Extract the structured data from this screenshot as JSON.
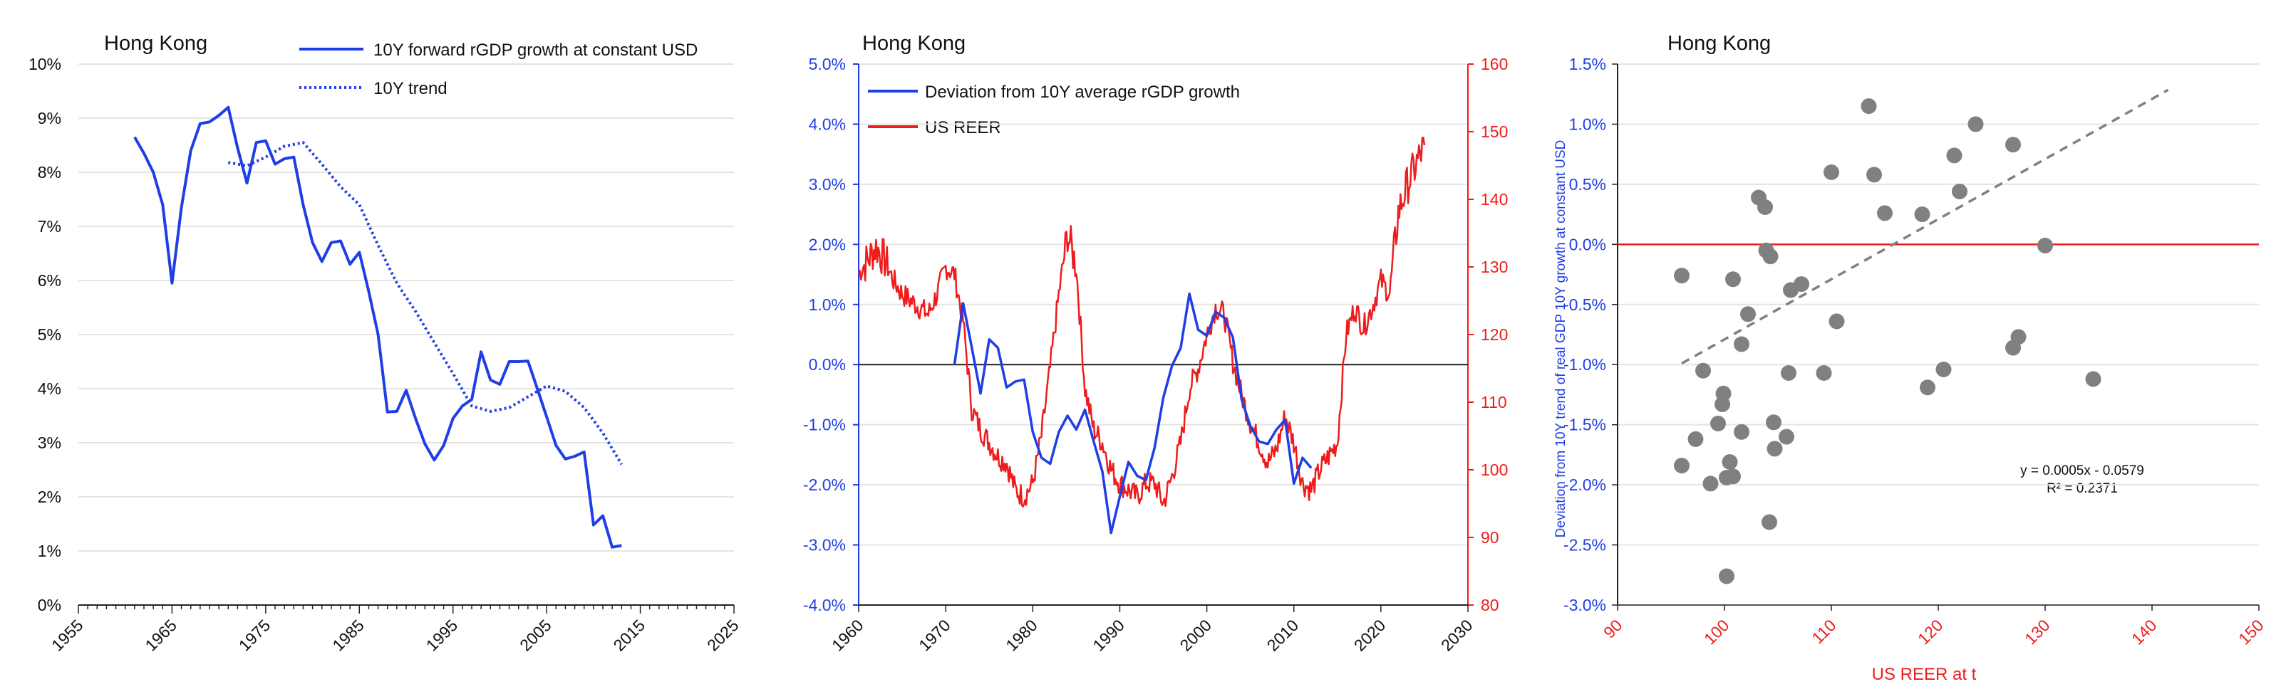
{
  "colors": {
    "blue": "#1f3ee6",
    "red": "#ee1c1c",
    "grid": "#e4e4e4",
    "axis": "#222222",
    "dot": "#808080",
    "trend": "#808080"
  },
  "chart_data": [
    {
      "type": "line",
      "title": "Hong Kong",
      "xlim": [
        1955,
        2025
      ],
      "ylim": [
        0,
        0.1
      ],
      "x_ticks": [
        "1955",
        "1965",
        "1975",
        "1985",
        "1995",
        "2005",
        "2015",
        "2025"
      ],
      "y_ticks": [
        "0%",
        "1%",
        "2%",
        "3%",
        "4%",
        "5%",
        "6%",
        "7%",
        "8%",
        "9%",
        "10%"
      ],
      "grid": "horizontal",
      "legend_position": "top-right",
      "series": [
        {
          "name": "10Y forward rGDP growth at constant USD",
          "style": "solid",
          "x": [
            1961,
            1962,
            1963,
            1964,
            1965,
            1966,
            1967,
            1968,
            1969,
            1970,
            1971,
            1972,
            1973,
            1974,
            1975,
            1976,
            1977,
            1978,
            1979,
            1980,
            1981,
            1982,
            1983,
            1984,
            1985,
            1986,
            1987,
            1988,
            1989,
            1990,
            1991,
            1992,
            1993,
            1994,
            1995,
            1996,
            1997,
            1998,
            1999,
            2000,
            2001,
            2002,
            2003,
            2004,
            2005,
            2006,
            2007,
            2008,
            2009,
            2010,
            2011,
            2012,
            2013
          ],
          "y": [
            0.0865,
            0.0835,
            0.08,
            0.074,
            0.0595,
            0.0735,
            0.084,
            0.089,
            0.0893,
            0.0905,
            0.092,
            0.0845,
            0.078,
            0.0855,
            0.0858,
            0.0815,
            0.0825,
            0.0828,
            0.074,
            0.067,
            0.0635,
            0.067,
            0.0673,
            0.063,
            0.0652,
            0.058,
            0.05,
            0.0357,
            0.0358,
            0.0397,
            0.0345,
            0.0298,
            0.0268,
            0.0295,
            0.0345,
            0.0368,
            0.038,
            0.0468,
            0.0416,
            0.0408,
            0.045,
            0.045,
            0.0451,
            0.04,
            0.0348,
            0.0295,
            0.027,
            0.0275,
            0.0283,
            0.0148,
            0.0165,
            0.0107,
            0.011
          ]
        },
        {
          "name": "10Y trend",
          "style": "dotted",
          "x": [
            1971,
            1973,
            1975,
            1977,
            1979,
            1981,
            1983,
            1985,
            1987,
            1989,
            1991,
            1993,
            1995,
            1997,
            1999,
            2001,
            2003,
            2005,
            2007,
            2009,
            2011,
            2013
          ],
          "y": [
            0.0818,
            0.0812,
            0.0828,
            0.0848,
            0.0855,
            0.0815,
            0.0773,
            0.074,
            0.0665,
            0.0595,
            0.0543,
            0.0485,
            0.0428,
            0.0368,
            0.0358,
            0.0365,
            0.0385,
            0.0405,
            0.0395,
            0.0365,
            0.0318,
            0.026
          ]
        }
      ]
    },
    {
      "type": "line",
      "title": "Hong Kong",
      "xlim": [
        1960,
        2030
      ],
      "ylim_left": [
        -0.04,
        0.05
      ],
      "ylim_right": [
        80,
        160
      ],
      "x_ticks": [
        "1960",
        "1970",
        "1980",
        "1990",
        "2000",
        "2010",
        "2020",
        "2030"
      ],
      "y_ticks_left": [
        "-4.0%",
        "-3.0%",
        "-2.0%",
        "-1.0%",
        "0.0%",
        "1.0%",
        "2.0%",
        "3.0%",
        "4.0%",
        "5.0%"
      ],
      "y_ticks_right": [
        "80",
        "90",
        "100",
        "110",
        "120",
        "130",
        "140",
        "150",
        "160"
      ],
      "grid": "horizontal",
      "legend_position": "top-left",
      "series": [
        {
          "name": "Deviation from 10Y average rGDP growth",
          "axis": "left",
          "color": "blue",
          "x": [
            1971,
            1972,
            1973,
            1974,
            1975,
            1976,
            1977,
            1978,
            1979,
            1980,
            1981,
            1982,
            1983,
            1984,
            1985,
            1986,
            1987,
            1988,
            1989,
            1990,
            1991,
            1992,
            1993,
            1994,
            1995,
            1996,
            1997,
            1998,
            1999,
            2000,
            2001,
            2002,
            2003,
            2004,
            2005,
            2006,
            2007,
            2008,
            2009,
            2010,
            2011,
            2012
          ],
          "y": [
            0.0,
            0.0102,
            0.0028,
            -0.0048,
            0.0042,
            0.0028,
            -0.0038,
            -0.0028,
            -0.0025,
            -0.0112,
            -0.0155,
            -0.0165,
            -0.0112,
            -0.0085,
            -0.0108,
            -0.0075,
            -0.0128,
            -0.0178,
            -0.028,
            -0.022,
            -0.0162,
            -0.0185,
            -0.0192,
            -0.0138,
            -0.0055,
            -0.0002,
            0.0028,
            0.0118,
            0.0058,
            0.0048,
            0.0088,
            0.0078,
            0.0045,
            -0.0058,
            -0.0102,
            -0.0128,
            -0.0132,
            -0.0108,
            -0.0092,
            -0.0198,
            -0.0155,
            -0.0172
          ]
        },
        {
          "name": "US REER",
          "axis": "right",
          "color": "red",
          "x": [
            1960,
            1961,
            1962,
            1963,
            1964,
            1965,
            1966,
            1967,
            1968,
            1969,
            1970,
            1971,
            1972,
            1973,
            1974,
            1975,
            1976,
            1977,
            1978,
            1979,
            1980,
            1981,
            1982,
            1983,
            1984,
            1985,
            1986,
            1987,
            1988,
            1989,
            1990,
            1991,
            1992,
            1993,
            1994,
            1995,
            1996,
            1997,
            1998,
            1999,
            2000,
            2001,
            2002,
            2003,
            2004,
            2005,
            2006,
            2007,
            2008,
            2009,
            2010,
            2011,
            2012,
            2013,
            2014,
            2015,
            2016,
            2017,
            2018,
            2019,
            2020,
            2021,
            2022,
            2023,
            2024,
            2025
          ],
          "y": [
            129,
            131,
            133,
            131,
            128,
            126,
            125,
            124,
            123,
            126,
            130,
            129,
            122,
            109,
            106,
            104,
            102,
            101,
            97,
            96,
            98,
            105,
            115,
            126,
            135,
            130,
            112,
            106,
            104,
            100,
            98,
            97,
            96,
            98,
            98,
            95,
            99,
            104,
            112,
            115,
            120,
            124,
            123,
            116,
            111,
            107,
            104,
            101,
            103,
            108,
            104,
            98,
            97,
            100,
            102,
            104,
            120,
            124,
            121,
            124,
            128,
            126,
            138,
            142,
            145,
            148
          ]
        }
      ]
    },
    {
      "type": "scatter",
      "title": "Hong Kong",
      "xlabel": "US REER at t",
      "ylabel": "Deviation from 10Y trend of real GDP 10Y growth at constant USD",
      "xlim": [
        90,
        150
      ],
      "ylim": [
        -0.03,
        0.015
      ],
      "x_ticks": [
        "90",
        "100",
        "110",
        "120",
        "130",
        "140",
        "150"
      ],
      "y_ticks": [
        "-3.0%",
        "-2.5%",
        "-2.0%",
        "-1.5%",
        "-1.0%",
        "-0.5%",
        "0.0%",
        "0.5%",
        "1.0%",
        "1.5%"
      ],
      "grid": "horizontal",
      "trendline": {
        "slope": 0.0005,
        "intercept": -0.0579,
        "x": [
          96,
          141.5
        ],
        "equation": "y = 0.0005x - 0.0579",
        "r2": "R² = 0.2371"
      },
      "points": [
        [
          113.5,
          0.0115
        ],
        [
          123.5,
          0.01
        ],
        [
          127,
          0.0083
        ],
        [
          121.5,
          0.0074
        ],
        [
          110,
          0.006
        ],
        [
          114,
          0.0058
        ],
        [
          122,
          0.0044
        ],
        [
          103.2,
          0.0039
        ],
        [
          103.8,
          0.0031
        ],
        [
          115,
          0.0026
        ],
        [
          118.5,
          0.0025
        ],
        [
          103.9,
          -0.0005
        ],
        [
          104.3,
          -0.001
        ],
        [
          130,
          -0.0001
        ],
        [
          96,
          -0.0026
        ],
        [
          100.8,
          -0.0029
        ],
        [
          107.2,
          -0.0033
        ],
        [
          106.2,
          -0.0038
        ],
        [
          102.2,
          -0.0058
        ],
        [
          110.5,
          -0.0064
        ],
        [
          101.6,
          -0.0083
        ],
        [
          98,
          -0.0105
        ],
        [
          106,
          -0.0107
        ],
        [
          109.3,
          -0.0107
        ],
        [
          120.5,
          -0.0104
        ],
        [
          127.5,
          -0.0077
        ],
        [
          127,
          -0.0086
        ],
        [
          119,
          -0.0119
        ],
        [
          134.5,
          -0.0112
        ],
        [
          99.9,
          -0.0124
        ],
        [
          99.8,
          -0.0133
        ],
        [
          99.4,
          -0.0149
        ],
        [
          104.6,
          -0.0148
        ],
        [
          101.6,
          -0.0156
        ],
        [
          105.8,
          -0.016
        ],
        [
          97.3,
          -0.0162
        ],
        [
          104.7,
          -0.017
        ],
        [
          96,
          -0.0184
        ],
        [
          100.5,
          -0.0181
        ],
        [
          98.7,
          -0.0199
        ],
        [
          100.8,
          -0.0193
        ],
        [
          100.2,
          -0.0194
        ],
        [
          104.2,
          -0.0231
        ],
        [
          100.2,
          -0.0276
        ]
      ]
    }
  ]
}
